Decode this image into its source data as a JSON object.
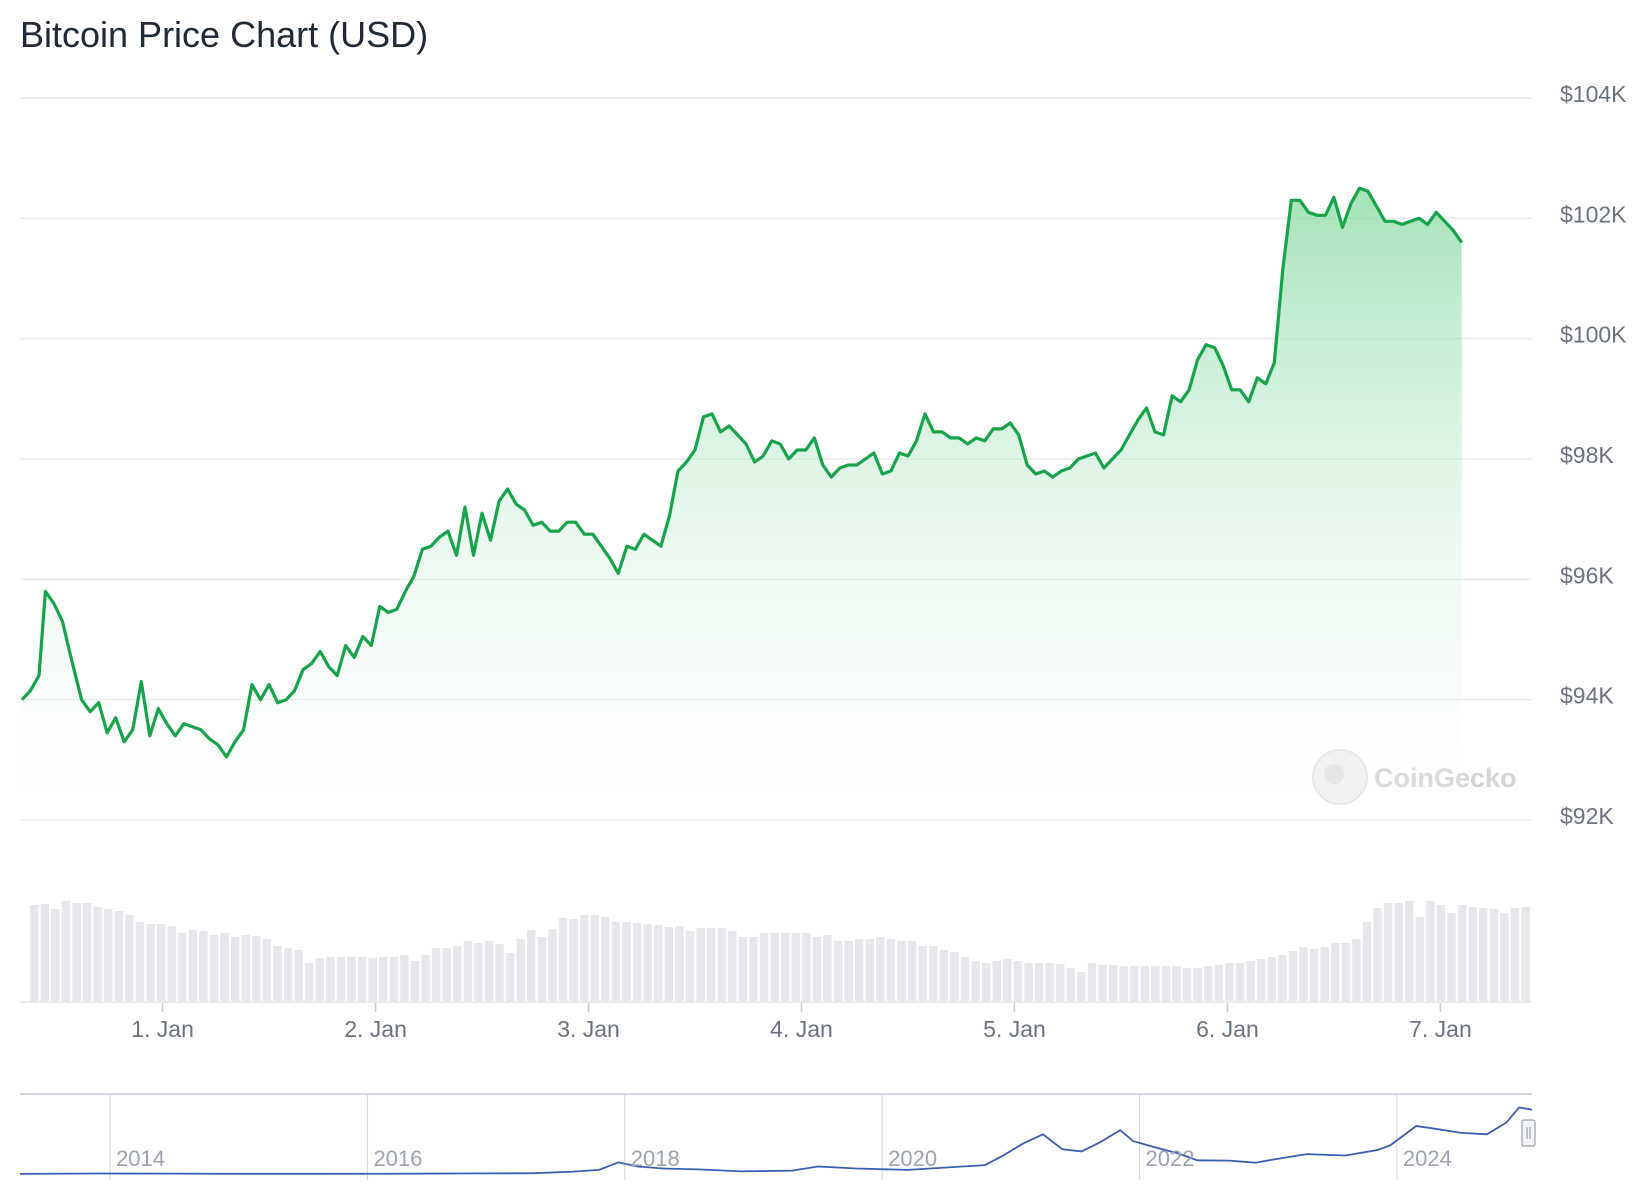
{
  "title": "Bitcoin Price Chart (USD)",
  "watermark": "CoinGecko",
  "colors": {
    "price_line": "#16a34a",
    "area_top": "#86d9a0",
    "volume_bar": "#e5e7eb",
    "navigator_line": "#3b5fb0",
    "grid": "#e8eaee"
  },
  "chart_data": {
    "type": "area",
    "y_unit": "USD",
    "ylim": [
      92000,
      104000
    ],
    "y_ticks": [
      {
        "value": 104000,
        "label": "$104K"
      },
      {
        "value": 102000,
        "label": "$102K"
      },
      {
        "value": 100000,
        "label": "$100K"
      },
      {
        "value": 98000,
        "label": "$98K"
      },
      {
        "value": 96000,
        "label": "$96K"
      },
      {
        "value": 94000,
        "label": "$94K"
      },
      {
        "value": 92000,
        "label": "$92K"
      }
    ],
    "xlim": [
      -0.66,
      6.43
    ],
    "x_unit": "days from 1 Jan",
    "x_ticks": [
      {
        "value": 0,
        "label": "1. Jan"
      },
      {
        "value": 1,
        "label": "2. Jan"
      },
      {
        "value": 2,
        "label": "3. Jan"
      },
      {
        "value": 3,
        "label": "4. Jan"
      },
      {
        "value": 4,
        "label": "5. Jan"
      },
      {
        "value": 5,
        "label": "6. Jan"
      },
      {
        "value": 6,
        "label": "7. Jan"
      }
    ],
    "grid": true,
    "series": [
      {
        "type": "line",
        "points": [
          [
            -0.66,
            94000
          ],
          [
            -0.62,
            94150
          ],
          [
            -0.58,
            94400
          ],
          [
            -0.55,
            95800
          ],
          [
            -0.51,
            95600
          ],
          [
            -0.47,
            95300
          ],
          [
            -0.43,
            94700
          ],
          [
            -0.38,
            94000
          ],
          [
            -0.34,
            93800
          ],
          [
            -0.3,
            93950
          ],
          [
            -0.26,
            93450
          ],
          [
            -0.22,
            93700
          ],
          [
            -0.18,
            93300
          ],
          [
            -0.14,
            93500
          ],
          [
            -0.1,
            94300
          ],
          [
            -0.06,
            93400
          ],
          [
            -0.02,
            93850
          ],
          [
            0.02,
            93600
          ],
          [
            0.06,
            93400
          ],
          [
            0.1,
            93600
          ],
          [
            0.14,
            93550
          ],
          [
            0.18,
            93500
          ],
          [
            0.22,
            93350
          ],
          [
            0.26,
            93250
          ],
          [
            0.3,
            93050
          ],
          [
            0.34,
            93300
          ],
          [
            0.38,
            93500
          ],
          [
            0.42,
            94250
          ],
          [
            0.46,
            94000
          ],
          [
            0.5,
            94250
          ],
          [
            0.54,
            93950
          ],
          [
            0.58,
            94000
          ],
          [
            0.62,
            94150
          ],
          [
            0.66,
            94500
          ],
          [
            0.7,
            94600
          ],
          [
            0.74,
            94800
          ],
          [
            0.78,
            94550
          ],
          [
            0.82,
            94400
          ],
          [
            0.86,
            94900
          ],
          [
            0.9,
            94700
          ],
          [
            0.94,
            95050
          ],
          [
            0.98,
            94900
          ],
          [
            1.02,
            95550
          ],
          [
            1.06,
            95450
          ],
          [
            1.1,
            95500
          ],
          [
            1.14,
            95800
          ],
          [
            1.18,
            96050
          ],
          [
            1.22,
            96500
          ],
          [
            1.26,
            96550
          ],
          [
            1.3,
            96700
          ],
          [
            1.34,
            96800
          ],
          [
            1.38,
            96400
          ],
          [
            1.42,
            97200
          ],
          [
            1.46,
            96400
          ],
          [
            1.5,
            97100
          ],
          [
            1.54,
            96650
          ],
          [
            1.58,
            97300
          ],
          [
            1.62,
            97500
          ],
          [
            1.66,
            97250
          ],
          [
            1.7,
            97150
          ],
          [
            1.74,
            96900
          ],
          [
            1.78,
            96950
          ],
          [
            1.82,
            96800
          ],
          [
            1.86,
            96800
          ],
          [
            1.9,
            96950
          ],
          [
            1.94,
            96950
          ],
          [
            1.98,
            96750
          ],
          [
            2.02,
            96750
          ],
          [
            2.06,
            96550
          ],
          [
            2.1,
            96350
          ],
          [
            2.14,
            96100
          ],
          [
            2.18,
            96550
          ],
          [
            2.22,
            96500
          ],
          [
            2.26,
            96750
          ],
          [
            2.3,
            96650
          ],
          [
            2.34,
            96550
          ],
          [
            2.38,
            97050
          ],
          [
            2.42,
            97800
          ],
          [
            2.46,
            97950
          ],
          [
            2.5,
            98150
          ],
          [
            2.54,
            98700
          ],
          [
            2.58,
            98750
          ],
          [
            2.62,
            98450
          ],
          [
            2.66,
            98550
          ],
          [
            2.7,
            98400
          ],
          [
            2.74,
            98250
          ],
          [
            2.78,
            97950
          ],
          [
            2.82,
            98050
          ],
          [
            2.86,
            98300
          ],
          [
            2.9,
            98250
          ],
          [
            2.94,
            98000
          ],
          [
            2.98,
            98150
          ],
          [
            3.02,
            98150
          ],
          [
            3.06,
            98350
          ],
          [
            3.1,
            97900
          ],
          [
            3.14,
            97700
          ],
          [
            3.18,
            97850
          ],
          [
            3.22,
            97900
          ],
          [
            3.26,
            97900
          ],
          [
            3.3,
            98000
          ],
          [
            3.34,
            98100
          ],
          [
            3.38,
            97750
          ],
          [
            3.42,
            97800
          ],
          [
            3.46,
            98100
          ],
          [
            3.5,
            98050
          ],
          [
            3.54,
            98300
          ],
          [
            3.58,
            98750
          ],
          [
            3.62,
            98450
          ],
          [
            3.66,
            98450
          ],
          [
            3.7,
            98350
          ],
          [
            3.74,
            98350
          ],
          [
            3.78,
            98250
          ],
          [
            3.82,
            98350
          ],
          [
            3.86,
            98300
          ],
          [
            3.9,
            98500
          ],
          [
            3.94,
            98500
          ],
          [
            3.98,
            98600
          ],
          [
            4.02,
            98400
          ],
          [
            4.06,
            97900
          ],
          [
            4.1,
            97750
          ],
          [
            4.14,
            97800
          ],
          [
            4.18,
            97700
          ],
          [
            4.22,
            97800
          ],
          [
            4.26,
            97850
          ],
          [
            4.3,
            98000
          ],
          [
            4.34,
            98050
          ],
          [
            4.38,
            98100
          ],
          [
            4.42,
            97850
          ],
          [
            4.46,
            98000
          ],
          [
            4.5,
            98150
          ],
          [
            4.54,
            98400
          ],
          [
            4.58,
            98650
          ],
          [
            4.62,
            98850
          ],
          [
            4.66,
            98450
          ],
          [
            4.7,
            98400
          ],
          [
            4.74,
            99050
          ],
          [
            4.78,
            98950
          ],
          [
            4.82,
            99150
          ],
          [
            4.86,
            99650
          ],
          [
            4.9,
            99900
          ],
          [
            4.94,
            99850
          ],
          [
            4.98,
            99550
          ],
          [
            5.02,
            99150
          ],
          [
            5.06,
            99150
          ],
          [
            5.1,
            98950
          ],
          [
            5.14,
            99350
          ],
          [
            5.18,
            99250
          ],
          [
            5.22,
            99600
          ],
          [
            5.26,
            101150
          ],
          [
            5.3,
            102300
          ],
          [
            5.34,
            102300
          ],
          [
            5.38,
            102100
          ],
          [
            5.42,
            102050
          ],
          [
            5.46,
            102050
          ],
          [
            5.5,
            102350
          ],
          [
            5.54,
            101850
          ],
          [
            5.58,
            102250
          ],
          [
            5.62,
            102500
          ],
          [
            5.66,
            102450
          ],
          [
            5.7,
            102200
          ],
          [
            5.74,
            101950
          ],
          [
            5.78,
            101950
          ],
          [
            5.82,
            101900
          ],
          [
            5.86,
            101950
          ],
          [
            5.9,
            102000
          ],
          [
            5.94,
            101900
          ],
          [
            5.98,
            102100
          ],
          [
            6.02,
            101950
          ],
          [
            6.06,
            101800
          ],
          [
            6.1,
            101600
          ]
        ]
      }
    ],
    "volume_relative": [
      0.96,
      0.97,
      0.92,
      1.0,
      0.98,
      0.98,
      0.94,
      0.92,
      0.9,
      0.86,
      0.79,
      0.77,
      0.77,
      0.75,
      0.68,
      0.71,
      0.7,
      0.66,
      0.68,
      0.64,
      0.66,
      0.65,
      0.62,
      0.55,
      0.53,
      0.51,
      0.38,
      0.43,
      0.44,
      0.44,
      0.44,
      0.44,
      0.43,
      0.44,
      0.44,
      0.46,
      0.4,
      0.46,
      0.53,
      0.53,
      0.55,
      0.6,
      0.58,
      0.6,
      0.57,
      0.48,
      0.62,
      0.71,
      0.64,
      0.72,
      0.83,
      0.82,
      0.86,
      0.86,
      0.84,
      0.79,
      0.79,
      0.78,
      0.77,
      0.76,
      0.74,
      0.75,
      0.7,
      0.73,
      0.73,
      0.73,
      0.7,
      0.64,
      0.64,
      0.68,
      0.68,
      0.68,
      0.68,
      0.68,
      0.64,
      0.66,
      0.6,
      0.6,
      0.62,
      0.62,
      0.64,
      0.62,
      0.6,
      0.6,
      0.55,
      0.55,
      0.51,
      0.49,
      0.44,
      0.4,
      0.38,
      0.4,
      0.42,
      0.4,
      0.38,
      0.38,
      0.38,
      0.37,
      0.33,
      0.29,
      0.38,
      0.36,
      0.36,
      0.35,
      0.35,
      0.35,
      0.35,
      0.35,
      0.35,
      0.33,
      0.33,
      0.35,
      0.36,
      0.38,
      0.38,
      0.4,
      0.42,
      0.44,
      0.46,
      0.5,
      0.54,
      0.52,
      0.54,
      0.58,
      0.58,
      0.62,
      0.79,
      0.93,
      0.98,
      0.98,
      1.0,
      0.84,
      1.0,
      0.96,
      0.88,
      0.96,
      0.94,
      0.93,
      0.92,
      0.88,
      0.93,
      0.94
    ],
    "navigator": {
      "x_ticks": [
        {
          "value": 2014,
          "label": "2014"
        },
        {
          "value": 2016,
          "label": "2016"
        },
        {
          "value": 2018,
          "label": "2018"
        },
        {
          "value": 2020,
          "label": "2020"
        },
        {
          "value": 2022,
          "label": "2022"
        },
        {
          "value": 2024,
          "label": "2024"
        }
      ],
      "xlim": [
        2013.3,
        2025.05
      ],
      "ylim": [
        0,
        108000
      ],
      "points": [
        [
          2013.3,
          100
        ],
        [
          2013.9,
          800
        ],
        [
          2014.5,
          600
        ],
        [
          2015.0,
          250
        ],
        [
          2015.6,
          250
        ],
        [
          2016.3,
          450
        ],
        [
          2016.9,
          900
        ],
        [
          2017.3,
          1200
        ],
        [
          2017.6,
          3500
        ],
        [
          2017.8,
          6000
        ],
        [
          2017.95,
          17000
        ],
        [
          2018.1,
          11000
        ],
        [
          2018.3,
          8000
        ],
        [
          2018.6,
          6500
        ],
        [
          2018.9,
          3800
        ],
        [
          2019.3,
          5000
        ],
        [
          2019.5,
          11000
        ],
        [
          2019.8,
          8000
        ],
        [
          2020.2,
          6000
        ],
        [
          2020.5,
          9500
        ],
        [
          2020.8,
          13000
        ],
        [
          2020.95,
          28000
        ],
        [
          2021.1,
          45000
        ],
        [
          2021.25,
          58000
        ],
        [
          2021.4,
          36000
        ],
        [
          2021.55,
          33000
        ],
        [
          2021.7,
          47000
        ],
        [
          2021.85,
          64000
        ],
        [
          2021.95,
          48000
        ],
        [
          2022.1,
          40000
        ],
        [
          2022.3,
          30000
        ],
        [
          2022.45,
          20000
        ],
        [
          2022.7,
          19500
        ],
        [
          2022.9,
          16500
        ],
        [
          2023.1,
          23000
        ],
        [
          2023.3,
          29000
        ],
        [
          2023.6,
          27000
        ],
        [
          2023.85,
          35000
        ],
        [
          2023.95,
          42000
        ],
        [
          2024.15,
          70000
        ],
        [
          2024.3,
          66000
        ],
        [
          2024.5,
          60000
        ],
        [
          2024.7,
          58000
        ],
        [
          2024.85,
          75000
        ],
        [
          2024.95,
          97000
        ],
        [
          2025.05,
          94000
        ]
      ]
    }
  }
}
